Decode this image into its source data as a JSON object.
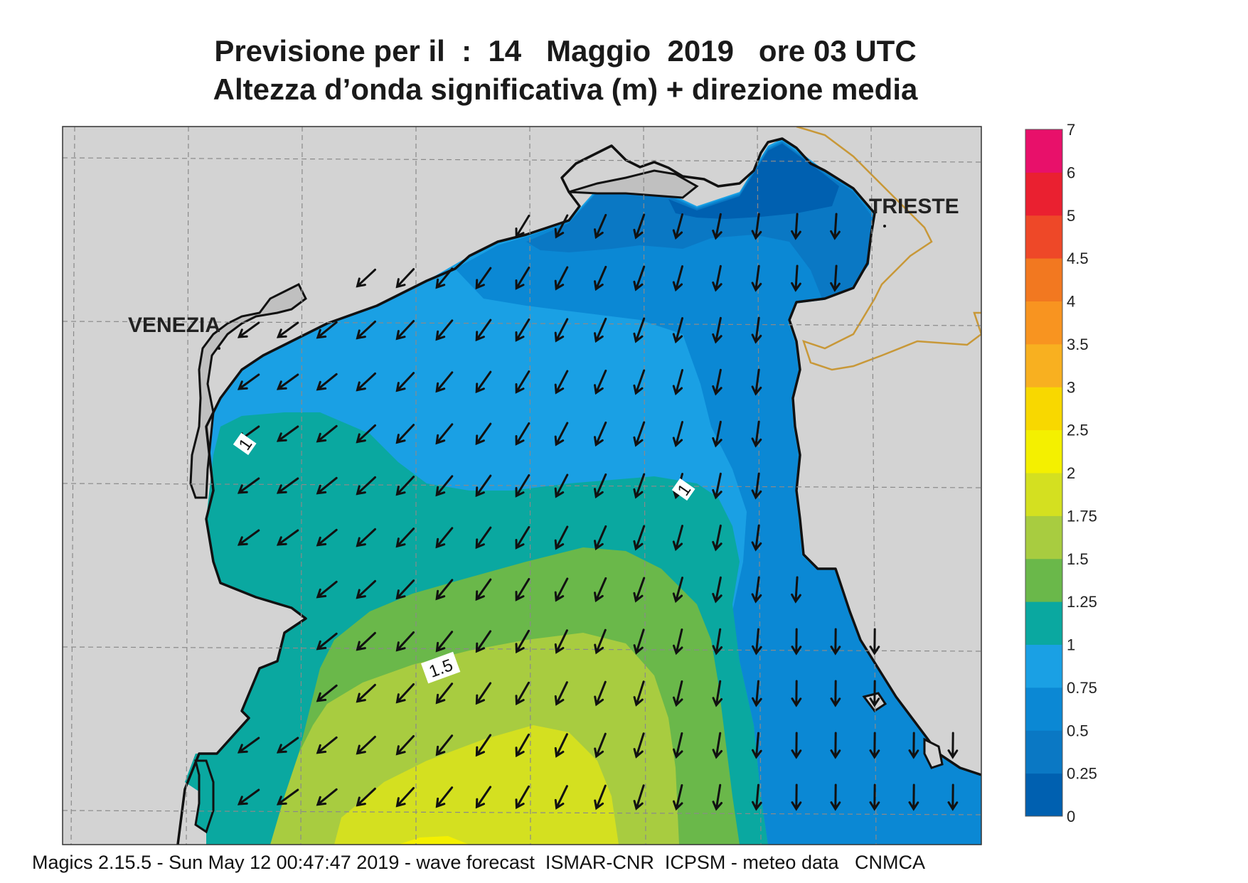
{
  "title": {
    "line1": "Previsione per il  :  14   Maggio  2019   ore 03 UTC",
    "line2": "Altezza d’onda significativa (m) + direzione media"
  },
  "footer": "Magics 2.15.5 - Sun May 12 00:47:47 2019 - wave forecast  ISMAR-CNR  ICPSM - meteo data   CNMCA",
  "cities": {
    "venezia": "VENEZIA",
    "trieste": "TRIESTE"
  },
  "contour_labels": {
    "c1a": "1",
    "c1b": "1",
    "c15": "1.5"
  },
  "colorbar": {
    "ticks": [
      "0",
      "0.25",
      "0.5",
      "0.75",
      "1",
      "1.25",
      "1.5",
      "1.75",
      "2",
      "2.5",
      "3",
      "3.5",
      "4",
      "4.5",
      "5",
      "6",
      "7"
    ],
    "colors": [
      "#0060b0",
      "#0a78c4",
      "#0b88d4",
      "#1aa0e4",
      "#0aa8a0",
      "#6ab84a",
      "#a8cc40",
      "#d4e020",
      "#f4f000",
      "#f8d800",
      "#f8b020",
      "#f89420",
      "#f27820",
      "#ee4828",
      "#ea2030",
      "#e8106a"
    ]
  },
  "colors": {
    "land": "#d3d3d3",
    "lagoon": "#c0c0c0",
    "coast": "#111111",
    "border": "#c89838",
    "grid": "#8a8a8a"
  }
}
